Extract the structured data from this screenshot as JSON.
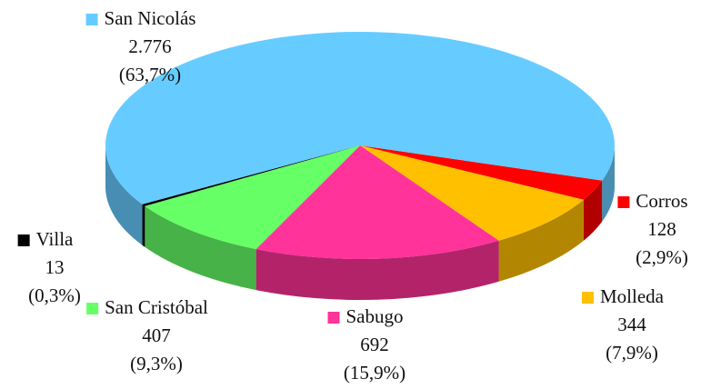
{
  "chart_data": {
    "type": "pie3d",
    "categories": [
      "Corros",
      "Molleda",
      "Sabugo",
      "San Cristóbal",
      "Villa",
      "San Nicolás"
    ],
    "values": [
      128,
      344,
      692,
      407,
      13,
      2776
    ],
    "value_labels": [
      "128",
      "344",
      "692",
      "407",
      "13",
      "2.776"
    ],
    "percent_labels": [
      "(2,9%)",
      "(7,9%)",
      "(15,9%)",
      "(9,3%)",
      "(0,3%)",
      "(63,7%)"
    ],
    "colors": [
      "#ff0000",
      "#ffc000",
      "#ff3399",
      "#66ff66",
      "#000000",
      "#66ccff"
    ]
  }
}
